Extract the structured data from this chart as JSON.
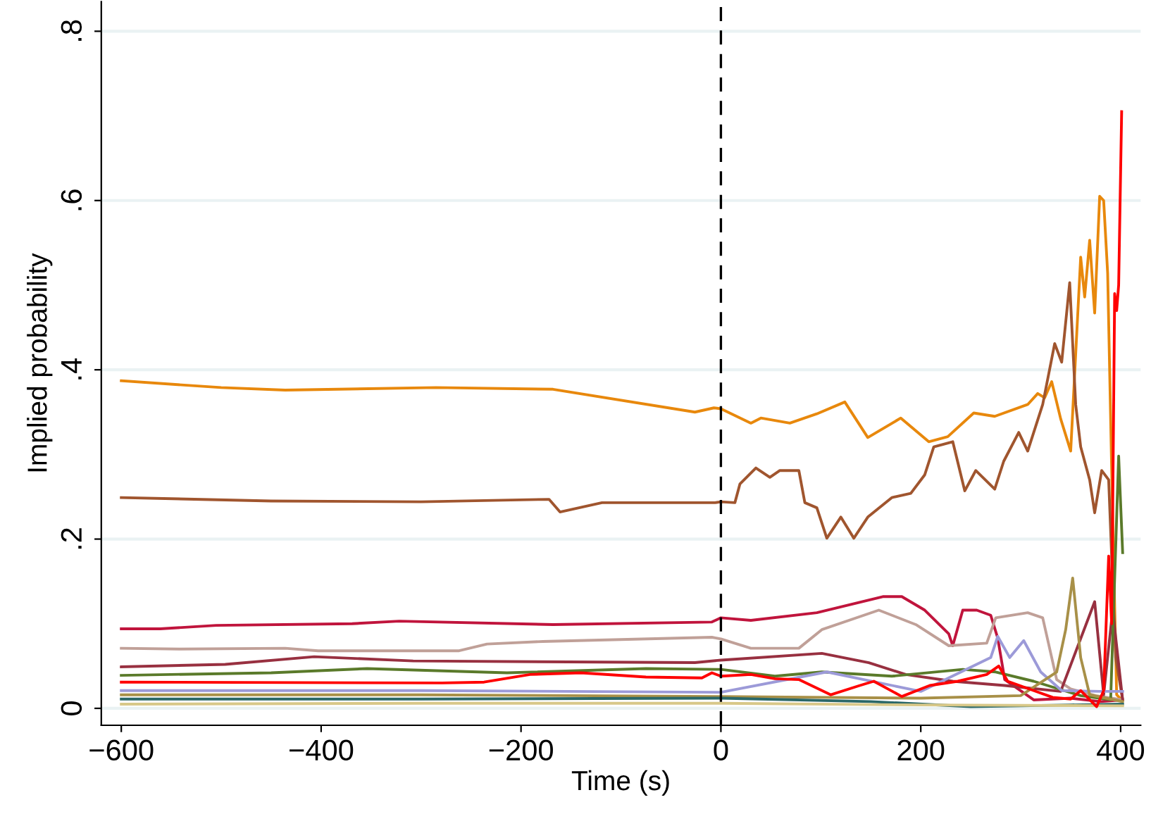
{
  "chart_data": {
    "type": "line",
    "xlabel": "Time (s)",
    "ylabel": "Implied probability",
    "xlim": [
      -620,
      420
    ],
    "ylim": [
      -0.02,
      0.835
    ],
    "xticks": [
      {
        "value": -600,
        "label": "−600"
      },
      {
        "value": -400,
        "label": "−400"
      },
      {
        "value": -200,
        "label": "−200"
      },
      0,
      200,
      400
    ],
    "yticks": [
      {
        "value": 0,
        "label": "0"
      },
      {
        "value": 0.2,
        "label": ".2"
      },
      {
        "value": 0.4,
        "label": ".4"
      },
      {
        "value": 0.6,
        "label": ".6"
      },
      {
        "value": 0.8,
        "label": ".8"
      }
    ],
    "grid": "y",
    "legend": false,
    "ref_lines": [
      {
        "axis": "x",
        "value": 0,
        "color": "#000000",
        "line_style": "dashed"
      }
    ],
    "series": [
      {
        "color": "#e8880c",
        "x": [
          -600,
          -500,
          -436,
          -285,
          -168,
          -26,
          -7,
          0,
          30,
          40,
          69,
          96,
          124,
          147,
          180,
          208,
          227,
          253,
          274,
          307,
          317,
          324,
          331,
          340,
          350,
          360,
          364,
          369,
          374,
          379,
          383,
          387,
          392,
          396,
          401
        ],
        "values": [
          0.387,
          0.379,
          0.376,
          0.379,
          0.377,
          0.35,
          0.355,
          0.354,
          0.337,
          0.343,
          0.337,
          0.348,
          0.362,
          0.32,
          0.343,
          0.315,
          0.321,
          0.349,
          0.345,
          0.359,
          0.372,
          0.367,
          0.386,
          0.342,
          0.304,
          0.533,
          0.486,
          0.553,
          0.467,
          0.605,
          0.6,
          0.514,
          0.226,
          0.016,
          0.01
        ]
      },
      {
        "color": "#a0552e",
        "x": [
          -600,
          -450,
          -300,
          -172,
          -161,
          -119,
          -6,
          0,
          14,
          19,
          35,
          49,
          59,
          78,
          84,
          96,
          106,
          120,
          133,
          147,
          171,
          190,
          204,
          213,
          232,
          244,
          255,
          274,
          283,
          298,
          307,
          322,
          334,
          341,
          349,
          355,
          360,
          369,
          374,
          381,
          388,
          395,
          402
        ],
        "values": [
          0.249,
          0.245,
          0.244,
          0.247,
          0.232,
          0.243,
          0.243,
          0.244,
          0.243,
          0.265,
          0.284,
          0.273,
          0.281,
          0.281,
          0.243,
          0.237,
          0.201,
          0.226,
          0.201,
          0.226,
          0.249,
          0.254,
          0.276,
          0.309,
          0.315,
          0.257,
          0.281,
          0.259,
          0.292,
          0.326,
          0.304,
          0.359,
          0.431,
          0.409,
          0.503,
          0.359,
          0.309,
          0.27,
          0.231,
          0.281,
          0.27,
          0.06,
          0.01
        ]
      },
      {
        "color": "#c0143c",
        "x": [
          -600,
          -561,
          -505,
          -369,
          -322,
          -168,
          -9,
          0,
          30,
          96,
          162,
          181,
          204,
          228,
          232,
          242,
          256,
          270,
          277,
          284,
          313,
          350,
          380,
          402
        ],
        "values": [
          0.094,
          0.094,
          0.098,
          0.1,
          0.103,
          0.099,
          0.102,
          0.107,
          0.104,
          0.113,
          0.132,
          0.132,
          0.116,
          0.088,
          0.074,
          0.116,
          0.116,
          0.11,
          0.083,
          0.034,
          0.01,
          0.012,
          0.008,
          0.01
        ]
      },
      {
        "color": "#c0a098",
        "x": [
          -600,
          -542,
          -436,
          -403,
          -262,
          -234,
          -178,
          -9,
          0,
          30,
          78,
          101,
          158,
          195,
          228,
          266,
          275,
          307,
          322,
          336,
          350,
          375,
          402
        ],
        "values": [
          0.071,
          0.07,
          0.071,
          0.068,
          0.068,
          0.076,
          0.079,
          0.084,
          0.082,
          0.071,
          0.071,
          0.093,
          0.116,
          0.099,
          0.074,
          0.077,
          0.107,
          0.113,
          0.107,
          0.034,
          0.023,
          0.015,
          0.01
        ]
      },
      {
        "color": "#983040",
        "x": [
          -600,
          -496,
          -407,
          -308,
          -26,
          0,
          101,
          148,
          185,
          232,
          284,
          340,
          374,
          383,
          392,
          402
        ],
        "values": [
          0.049,
          0.052,
          0.061,
          0.056,
          0.054,
          0.057,
          0.065,
          0.054,
          0.04,
          0.032,
          0.027,
          0.02,
          0.126,
          0.016,
          0.116,
          0.01
        ]
      },
      {
        "color": "#5a7a2a",
        "x": [
          -600,
          -450,
          -354,
          -214,
          -75,
          0,
          54,
          101,
          171,
          242,
          275,
          313,
          360,
          390,
          398,
          402
        ],
        "values": [
          0.039,
          0.042,
          0.047,
          0.042,
          0.047,
          0.046,
          0.038,
          0.043,
          0.038,
          0.046,
          0.043,
          0.032,
          0.015,
          0.01,
          0.298,
          0.184
        ]
      },
      {
        "color": "#9c9ad8",
        "x": [
          -600,
          -300,
          0,
          106,
          200,
          270,
          277,
          289,
          303,
          320,
          341,
          380,
          402
        ],
        "values": [
          0.021,
          0.021,
          0.019,
          0.043,
          0.02,
          0.06,
          0.085,
          0.06,
          0.08,
          0.043,
          0.021,
          0.02,
          0.02
        ]
      },
      {
        "color": "#a89048",
        "x": [
          -600,
          -300,
          0,
          200,
          300,
          336,
          345,
          352,
          360,
          369,
          402
        ],
        "values": [
          0.016,
          0.016,
          0.014,
          0.012,
          0.015,
          0.043,
          0.093,
          0.154,
          0.06,
          0.016,
          0.008
        ]
      },
      {
        "color": "#2a6868",
        "x": [
          -600,
          -300,
          0,
          150,
          250,
          300,
          350,
          402
        ],
        "values": [
          0.011,
          0.011,
          0.012,
          0.008,
          0.002,
          0.003,
          0.004,
          0.005
        ]
      },
      {
        "color": "#d8c888",
        "x": [
          -600,
          -300,
          0,
          200,
          402
        ],
        "values": [
          0.005,
          0.006,
          0.006,
          0.004,
          0.003
        ]
      },
      {
        "color": "#ff0000",
        "x": [
          -600,
          -279,
          -237,
          -191,
          -140,
          -75,
          -19,
          -9,
          0,
          30,
          54,
          78,
          110,
          139,
          153,
          181,
          209,
          237,
          266,
          278,
          287,
          313,
          332,
          350,
          360,
          376,
          383,
          388,
          391,
          394,
          396,
          398,
          401
        ],
        "values": [
          0.031,
          0.03,
          0.031,
          0.04,
          0.042,
          0.037,
          0.036,
          0.042,
          0.038,
          0.04,
          0.035,
          0.034,
          0.016,
          0.027,
          0.032,
          0.014,
          0.027,
          0.032,
          0.04,
          0.05,
          0.032,
          0.021,
          0.013,
          0.011,
          0.021,
          0.002,
          0.021,
          0.18,
          0.1,
          0.49,
          0.47,
          0.5,
          0.705
        ]
      }
    ]
  }
}
